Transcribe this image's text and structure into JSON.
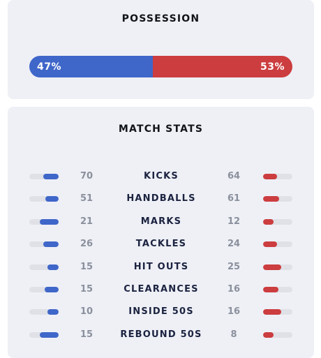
{
  "possession": {
    "title": "POSSESSION",
    "home_pct": 47,
    "away_pct": 53,
    "home_label": "47%",
    "away_label": "53%",
    "home_color": "#3f66c9",
    "away_color": "#cc3d3f"
  },
  "match_stats": {
    "title": "MATCH STATS",
    "rows": [
      {
        "label": "KICKS",
        "home": "70",
        "away": "64",
        "home_fill": 0.52,
        "away_fill": 0.48
      },
      {
        "label": "HANDBALLS",
        "home": "51",
        "away": "61",
        "home_fill": 0.45,
        "away_fill": 0.55
      },
      {
        "label": "MARKS",
        "home": "21",
        "away": "12",
        "home_fill": 0.64,
        "away_fill": 0.36
      },
      {
        "label": "TACKLES",
        "home": "26",
        "away": "24",
        "home_fill": 0.52,
        "away_fill": 0.48
      },
      {
        "label": "HIT OUTS",
        "home": "15",
        "away": "25",
        "home_fill": 0.38,
        "away_fill": 0.62
      },
      {
        "label": "CLEARANCES",
        "home": "15",
        "away": "16",
        "home_fill": 0.48,
        "away_fill": 0.52
      },
      {
        "label": "INSIDE 50S",
        "home": "10",
        "away": "16",
        "home_fill": 0.38,
        "away_fill": 0.62
      },
      {
        "label": "REBOUND 50S",
        "home": "15",
        "away": "8",
        "home_fill": 0.65,
        "away_fill": 0.35
      }
    ]
  }
}
